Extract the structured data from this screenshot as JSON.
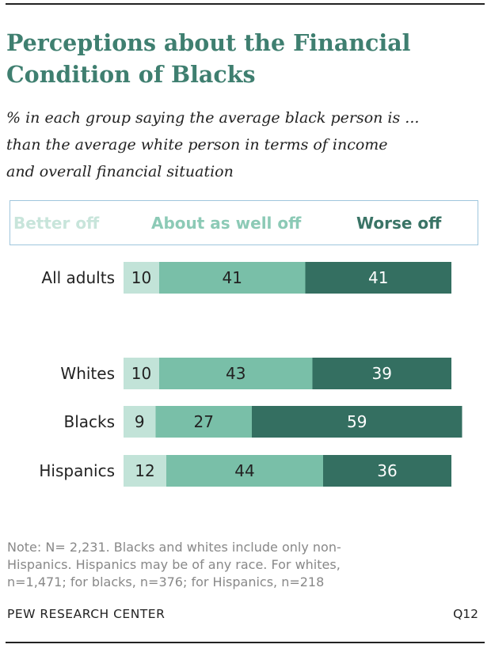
{
  "chart_data": {
    "type": "bar",
    "orientation": "horizontal",
    "stacked": true,
    "title": "Perceptions about the Financial Condition of Blacks",
    "subtitle": "% in each group saying the average black person is ... than the average white person in terms of income and overall financial situation",
    "categories": [
      "All adults",
      "Whites",
      "Blacks",
      "Hispanics"
    ],
    "series": [
      {
        "name": "Better off",
        "values": [
          10,
          10,
          9,
          12
        ],
        "color": "#c2e3d8"
      },
      {
        "name": "About as well off",
        "values": [
          41,
          43,
          27,
          44
        ],
        "color": "#79bfa8"
      },
      {
        "name": "Worse off",
        "values": [
          41,
          39,
          59,
          36
        ],
        "color": "#346f61"
      }
    ],
    "legend": "top",
    "grid": false
  },
  "subtitle_lines": [
    "% in each group saying the average black person is ...",
    "than the average white person in terms of income",
    "and overall financial situation"
  ],
  "note_lines": [
    "Note: N= 2,231. Blacks and whites include only non-",
    "Hispanics. Hispanics may be of any race. For whites,",
    "n=1,471; for blacks, n=376; for Hispanics, n=218"
  ],
  "source": "PEW RESEARCH CENTER",
  "question": "Q12"
}
